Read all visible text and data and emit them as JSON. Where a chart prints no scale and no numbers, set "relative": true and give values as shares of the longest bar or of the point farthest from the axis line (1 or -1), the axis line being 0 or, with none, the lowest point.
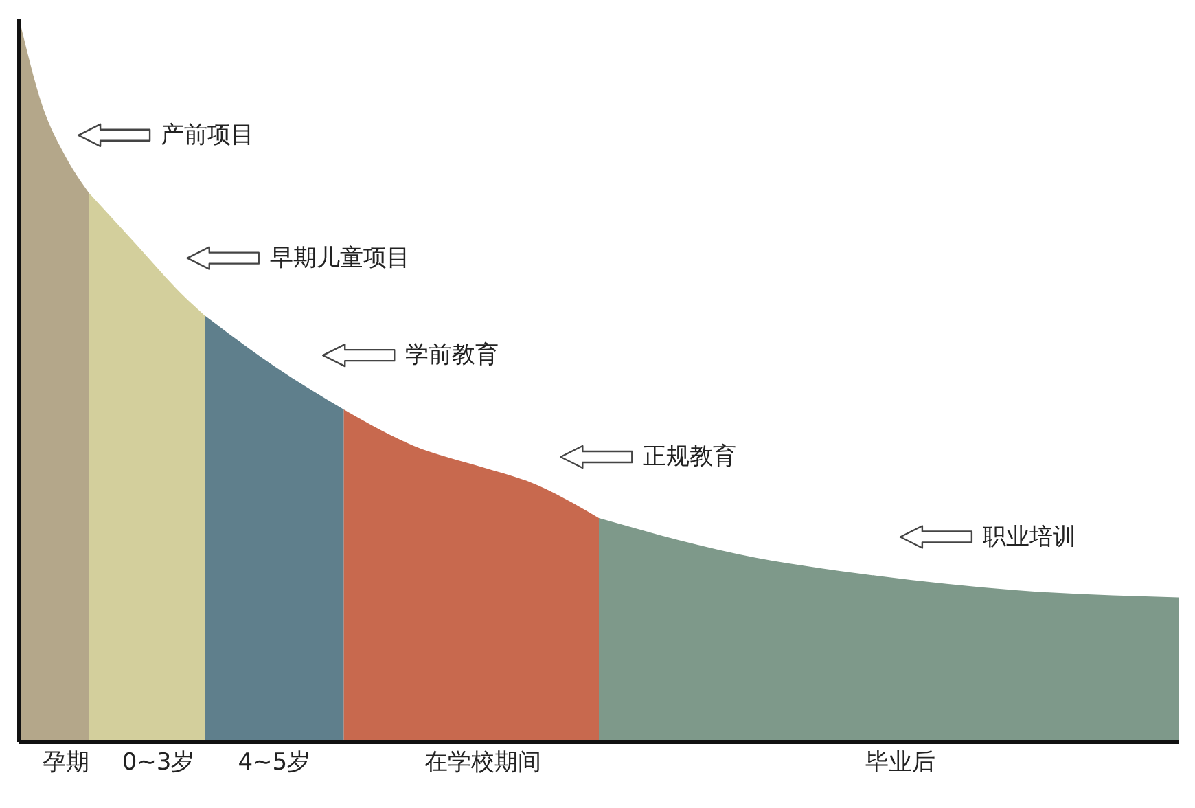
{
  "chart_data": {
    "type": "area",
    "relative": true,
    "categories": [
      null,
      null,
      "孕期",
      null,
      null,
      null,
      "0~3岁",
      null,
      null,
      null,
      null,
      "4~5岁",
      null,
      null,
      null,
      null,
      null,
      null,
      null,
      null,
      "在学校期间",
      null,
      null,
      null,
      null,
      null,
      null,
      null,
      null,
      null,
      null,
      null,
      null,
      null,
      null,
      null,
      null,
      null,
      "毕业后",
      null,
      null,
      null,
      null,
      null,
      null,
      null,
      null,
      null,
      null,
      null,
      null
    ],
    "grid": false,
    "series": [
      {
        "color": "#b4a78a",
        "values": [
          1.0,
          0.88,
          0.81,
          0.76,
          null,
          null,
          null,
          null,
          null,
          null,
          null,
          null,
          null,
          null,
          null,
          null,
          null,
          null,
          null,
          null,
          null,
          null,
          null,
          null,
          null,
          null,
          null,
          null,
          null,
          null,
          null,
          null,
          null,
          null,
          null,
          null,
          null,
          null,
          null,
          null,
          null,
          null,
          null,
          null,
          null,
          null,
          null,
          null,
          null,
          null,
          null
        ]
      },
      {
        "color": "#d3cf9c",
        "values": [
          null,
          null,
          null,
          0.76,
          null,
          0.69,
          null,
          0.62,
          0.59,
          null,
          null,
          null,
          null,
          null,
          null,
          null,
          null,
          null,
          null,
          null,
          null,
          null,
          null,
          null,
          null,
          null,
          null,
          null,
          null,
          null,
          null,
          null,
          null,
          null,
          null,
          null,
          null,
          null,
          null,
          null,
          null,
          null,
          null,
          null,
          null,
          null,
          null,
          null,
          null,
          null,
          null
        ]
      },
      {
        "color": "#5f7f8c",
        "values": [
          null,
          null,
          null,
          null,
          null,
          null,
          null,
          null,
          0.59,
          null,
          null,
          0.52,
          null,
          null,
          0.46,
          null,
          null,
          null,
          null,
          null,
          null,
          null,
          null,
          null,
          null,
          null,
          null,
          null,
          null,
          null,
          null,
          null,
          null,
          null,
          null,
          null,
          null,
          null,
          null,
          null,
          null,
          null,
          null,
          null,
          null,
          null,
          null,
          null,
          null,
          null,
          null
        ]
      },
      {
        "color": "#c8694e",
        "values": [
          null,
          null,
          null,
          null,
          null,
          null,
          null,
          null,
          null,
          null,
          null,
          null,
          null,
          null,
          0.46,
          null,
          null,
          0.41,
          null,
          null,
          0.38,
          null,
          0.36,
          null,
          null,
          0.31,
          null,
          null,
          null,
          null,
          null,
          null,
          null,
          null,
          null,
          null,
          null,
          null,
          null,
          null,
          null,
          null,
          null,
          null,
          null,
          null,
          null,
          null,
          null,
          null,
          null
        ]
      },
      {
        "color": "#7e998a",
        "values": [
          null,
          null,
          null,
          null,
          null,
          null,
          null,
          null,
          null,
          null,
          null,
          null,
          null,
          null,
          null,
          null,
          null,
          null,
          null,
          null,
          null,
          null,
          null,
          null,
          null,
          0.31,
          null,
          null,
          null,
          null,
          null,
          0.26,
          null,
          null,
          null,
          null,
          null,
          0.23,
          null,
          null,
          null,
          null,
          null,
          0.21,
          null,
          null,
          null,
          null,
          null,
          null,
          0.2
        ]
      }
    ],
    "annotations": [
      "产前项目",
      "早期儿童项目",
      "学前教育",
      "正规教育",
      "职业培训"
    ]
  }
}
